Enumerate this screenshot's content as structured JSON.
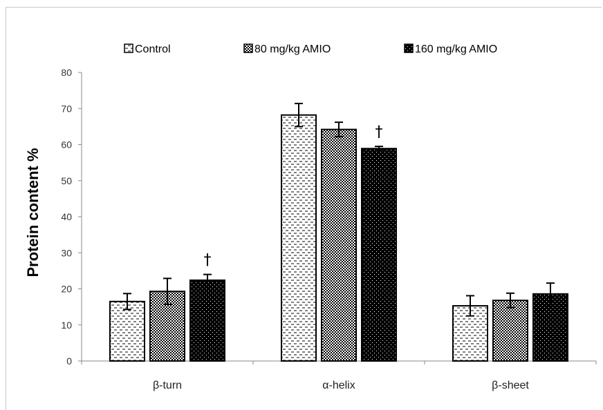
{
  "chart_data": {
    "type": "bar",
    "categories": [
      "β-turn",
      "α-helix",
      "β-sheet"
    ],
    "series": [
      {
        "name": "Control",
        "values": [
          16.5,
          68.2,
          15.3
        ],
        "errors": [
          2.2,
          3.2,
          2.8
        ],
        "pattern": "dashes"
      },
      {
        "name": "80 mg/kg AMIO",
        "values": [
          19.3,
          64.2,
          16.8
        ],
        "errors": [
          3.6,
          2.0,
          2.0
        ],
        "pattern": "checker"
      },
      {
        "name": "160 mg/kg AMIO",
        "values": [
          22.4,
          58.9,
          18.6
        ],
        "errors": [
          1.6,
          0.6,
          3.0
        ],
        "pattern": "dots"
      }
    ],
    "significance": [
      {
        "category": "β-turn",
        "series": "160 mg/kg AMIO",
        "mark": "†"
      },
      {
        "category": "α-helix",
        "series": "160 mg/kg AMIO",
        "mark": "†"
      }
    ],
    "ylabel": "Protein content %",
    "ylim": [
      0,
      80
    ],
    "yticks": [
      0,
      10,
      20,
      30,
      40,
      50,
      60,
      70,
      80
    ],
    "legend_position": "top",
    "grid": false
  }
}
